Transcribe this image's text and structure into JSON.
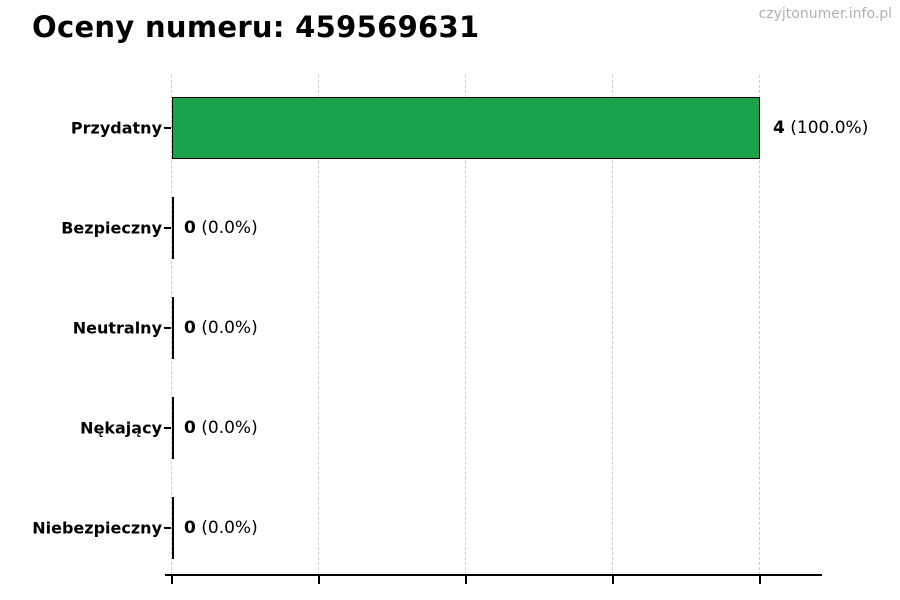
{
  "page": {
    "watermark": "czyjtonumer.info.pl"
  },
  "chart_data": {
    "type": "bar",
    "orientation": "horizontal",
    "title": "Oceny numeru: 459569631",
    "categories": [
      "Przydatny",
      "Bezpieczny",
      "Neutralny",
      "Nękający",
      "Niebezpieczny"
    ],
    "values": [
      4,
      0,
      0,
      0,
      0
    ],
    "rows": [
      {
        "category": "Przydatny",
        "value": 4,
        "count": "4",
        "percent": "(100.0%)"
      },
      {
        "category": "Bezpieczny",
        "value": 0,
        "count": "0",
        "percent": "(0.0%)"
      },
      {
        "category": "Neutralny",
        "value": 0,
        "count": "0",
        "percent": "(0.0%)"
      },
      {
        "category": "Nękający",
        "value": 0,
        "count": "0",
        "percent": "(0.0%)"
      },
      {
        "category": "Niebezpieczny",
        "value": 0,
        "count": "0",
        "percent": "(0.0%)"
      }
    ],
    "xlim": [
      0,
      4.42
    ],
    "x_ticks": [
      0,
      1,
      2,
      3,
      4
    ],
    "x_tick_labels_visible": false,
    "grid": true,
    "legend": false,
    "colors": {
      "bar_fill": "#1ba24a",
      "bar_border": "#000000",
      "grid_line": "#cccccc",
      "axis": "#000000",
      "text": "#000000",
      "watermark_text": "#b0b0b0"
    }
  }
}
